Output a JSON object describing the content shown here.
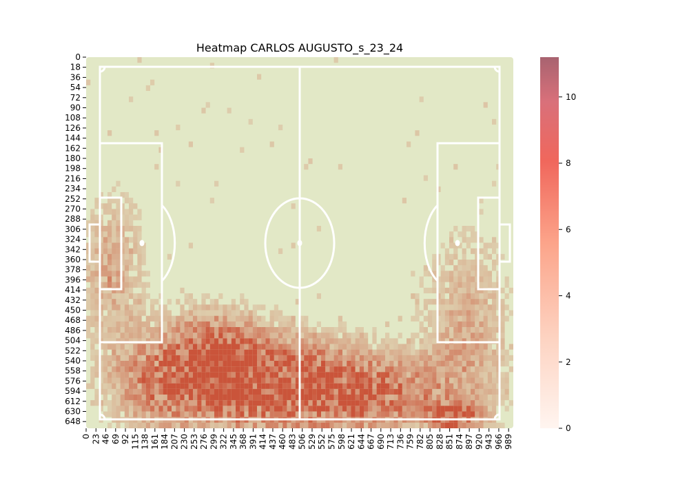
{
  "chart_data": {
    "type": "heatmap",
    "title": "Heatmap CARLOS AUGUSTO_s_23_24",
    "xlabel": "",
    "ylabel": "",
    "x_ticks": [
      "0",
      "23",
      "46",
      "69",
      "92",
      "115",
      "138",
      "161",
      "184",
      "207",
      "230",
      "253",
      "276",
      "299",
      "322",
      "345",
      "368",
      "391",
      "414",
      "437",
      "460",
      "483",
      "506",
      "529",
      "552",
      "575",
      "598",
      "621",
      "644",
      "667",
      "690",
      "713",
      "736",
      "759",
      "782",
      "805",
      "828",
      "851",
      "874",
      "897",
      "920",
      "943",
      "966",
      "989"
    ],
    "y_ticks": [
      "0",
      "18",
      "36",
      "54",
      "72",
      "90",
      "108",
      "126",
      "144",
      "162",
      "180",
      "198",
      "216",
      "234",
      "252",
      "270",
      "288",
      "306",
      "324",
      "342",
      "360",
      "378",
      "396",
      "414",
      "432",
      "450",
      "468",
      "486",
      "504",
      "522",
      "540",
      "558",
      "576",
      "594",
      "612",
      "630",
      "648"
    ],
    "xlim": [
      0,
      1000
    ],
    "ylim": [
      0,
      660
    ],
    "colorbar": {
      "min": 0,
      "max": 11.2,
      "ticks": [
        "0",
        "2",
        "4",
        "6",
        "8",
        "10"
      ],
      "colormap": "Reds"
    },
    "colors": {
      "pitch": "#e2e8c6",
      "pitch_lines": "#ffffff",
      "cmap_low": "#fff5f0",
      "cmap_mid1": "#fcbba1",
      "cmap_mid2": "#fb6a4a",
      "cmap_high": "#a86370"
    },
    "density_clusters": [
      {
        "x": 360,
        "y": 580,
        "sx": 130,
        "sy": 60,
        "peak": 8.5
      },
      {
        "x": 300,
        "y": 530,
        "sx": 80,
        "sy": 50,
        "peak": 6
      },
      {
        "x": 570,
        "y": 590,
        "sx": 100,
        "sy": 50,
        "peak": 6.5
      },
      {
        "x": 720,
        "y": 600,
        "sx": 110,
        "sy": 45,
        "peak": 5
      },
      {
        "x": 160,
        "y": 580,
        "sx": 80,
        "sy": 60,
        "peak": 4
      },
      {
        "x": 890,
        "y": 500,
        "sx": 70,
        "sy": 120,
        "peak": 3.5
      },
      {
        "x": 60,
        "y": 380,
        "sx": 50,
        "sy": 90,
        "peak": 3.5
      },
      {
        "x": 860,
        "y": 640,
        "sx": 40,
        "sy": 18,
        "peak": 7
      }
    ]
  }
}
